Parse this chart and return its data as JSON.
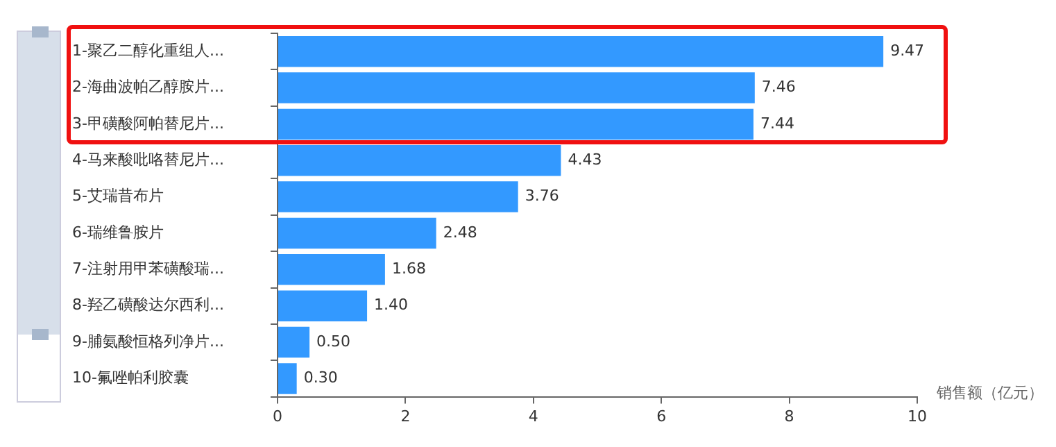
{
  "chart_data": {
    "type": "bar",
    "orientation": "horizontal",
    "xlabel": "销售额（亿元）",
    "categories": [
      "1-聚乙二醇化重组人...",
      "2-海曲波帕乙醇胺片...",
      "3-甲磺酸阿帕替尼片...",
      "4-马来酸吡咯替尼片...",
      "5-艾瑞昔布片",
      "6-瑞维鲁胺片",
      "7-注射用甲苯磺酸瑞...",
      "8-羟乙磺酸达尔西利...",
      "9-脯氨酸恒格列净片...",
      "10-氟唑帕利胶囊"
    ],
    "values": [
      9.47,
      7.46,
      7.44,
      4.43,
      3.76,
      2.48,
      1.68,
      1.4,
      0.5,
      0.3
    ],
    "value_labels": [
      "9.47",
      "7.46",
      "7.44",
      "4.43",
      "3.76",
      "2.48",
      "1.68",
      "1.40",
      "0.50",
      "0.30"
    ],
    "color": "#3399ff",
    "xlim": [
      0,
      10
    ],
    "xticks": [
      0,
      2,
      4,
      6,
      8,
      10
    ],
    "legend": false
  }
}
